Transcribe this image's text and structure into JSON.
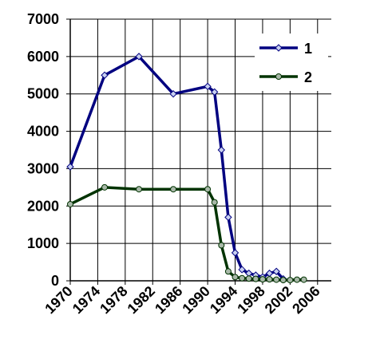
{
  "chart_data": {
    "type": "line",
    "x": [
      1970,
      1975,
      1980,
      1985,
      1990,
      1991,
      1992,
      1993,
      1994,
      1995,
      1996,
      1997,
      1998,
      1999,
      2000,
      2001,
      2002,
      2003,
      2004
    ],
    "series": [
      {
        "name": "1",
        "color": "#000080",
        "marker": "diamond",
        "marker_fill": "#c8d0f0",
        "values": [
          3050,
          5500,
          6000,
          5000,
          5200,
          5050,
          3500,
          1700,
          750,
          300,
          200,
          150,
          100,
          200,
          250,
          50,
          null,
          null,
          null
        ]
      },
      {
        "name": "2",
        "color": "#003300",
        "marker": "circle",
        "marker_fill": "#a8b8a8",
        "values": [
          2050,
          2500,
          2450,
          2450,
          2450,
          2100,
          950,
          250,
          100,
          70,
          60,
          50,
          40,
          40,
          30,
          20,
          20,
          30,
          30
        ]
      }
    ],
    "xlim": [
      1970,
      2008
    ],
    "xticks": [
      1970,
      1974,
      1978,
      1982,
      1986,
      1990,
      1994,
      1998,
      2002,
      2006
    ],
    "ylim": [
      0,
      7000
    ],
    "yticks": [
      0,
      1000,
      2000,
      3000,
      4000,
      5000,
      6000,
      7000
    ],
    "grid": true,
    "legend": "top-right"
  }
}
